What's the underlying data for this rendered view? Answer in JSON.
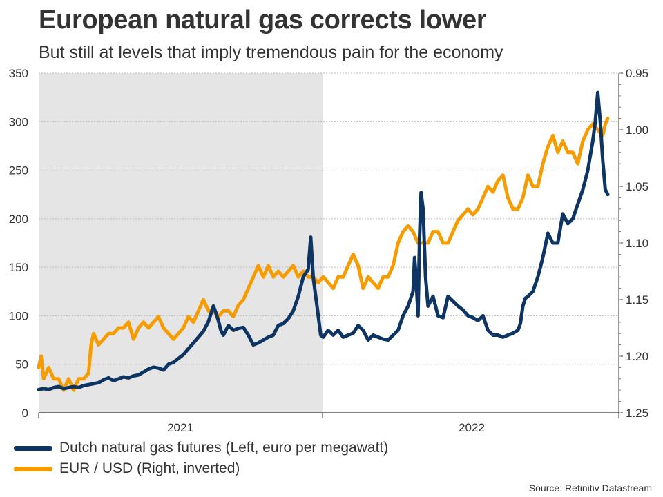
{
  "title": "European natural gas corrects lower",
  "subtitle": "But still at levels that imply tremendous pain for the economy",
  "source": "Source: Refinitiv Datastream",
  "chart_data": {
    "type": "line",
    "shaded_region": {
      "label": "2021",
      "color": "#e5e5e5"
    },
    "x_categories": [
      "2021",
      "2022"
    ],
    "left_axis": {
      "range": [
        0,
        350
      ],
      "ticks": [
        "0",
        "50",
        "100",
        "150",
        "200",
        "250",
        "300",
        "350"
      ]
    },
    "right_axis": {
      "range": [
        0.95,
        1.25
      ],
      "inverted": true,
      "ticks": [
        "0.95",
        "1.00",
        "1.05",
        "1.10",
        "1.15",
        "1.20",
        "1.25"
      ]
    },
    "t_range": [
      0,
      100
    ],
    "series": [
      {
        "name": "Dutch natural gas futures (Left, euro per megawatt)",
        "axis": "left",
        "color": "#0d3463",
        "points": [
          [
            0,
            24
          ],
          [
            1,
            25
          ],
          [
            2,
            24
          ],
          [
            3,
            26
          ],
          [
            4,
            27
          ],
          [
            5,
            25
          ],
          [
            6,
            26
          ],
          [
            7,
            27
          ],
          [
            8,
            26
          ],
          [
            9,
            28
          ],
          [
            10,
            29
          ],
          [
            11,
            30
          ],
          [
            12,
            31
          ],
          [
            13,
            34
          ],
          [
            14,
            36
          ],
          [
            15,
            33
          ],
          [
            16,
            35
          ],
          [
            17,
            37
          ],
          [
            18,
            36
          ],
          [
            19,
            38
          ],
          [
            20,
            39
          ],
          [
            21,
            42
          ],
          [
            22,
            45
          ],
          [
            23,
            47
          ],
          [
            24,
            46
          ],
          [
            25,
            44
          ],
          [
            26,
            50
          ],
          [
            27,
            52
          ],
          [
            28,
            56
          ],
          [
            29,
            60
          ],
          [
            30,
            66
          ],
          [
            31,
            72
          ],
          [
            32,
            78
          ],
          [
            33,
            84
          ],
          [
            34,
            94
          ],
          [
            35,
            110
          ],
          [
            35.5,
            103
          ],
          [
            36,
            95
          ],
          [
            36.5,
            85
          ],
          [
            37,
            80
          ],
          [
            38,
            90
          ],
          [
            39,
            85
          ],
          [
            40,
            87
          ],
          [
            41,
            88
          ],
          [
            42,
            80
          ],
          [
            43,
            70
          ],
          [
            44,
            72
          ],
          [
            45,
            75
          ],
          [
            46,
            78
          ],
          [
            47,
            80
          ],
          [
            48,
            90
          ],
          [
            49,
            92
          ],
          [
            50,
            97
          ],
          [
            51,
            105
          ],
          [
            52,
            120
          ],
          [
            53,
            140
          ],
          [
            54,
            148
          ],
          [
            54.5,
            181
          ],
          [
            55,
            140
          ],
          [
            56,
            100
          ],
          [
            56.5,
            80
          ],
          [
            57,
            78
          ],
          [
            58,
            85
          ],
          [
            59,
            80
          ],
          [
            60,
            85
          ],
          [
            61,
            78
          ],
          [
            62,
            80
          ],
          [
            63,
            82
          ],
          [
            64,
            90
          ],
          [
            65,
            85
          ],
          [
            66,
            75
          ],
          [
            67,
            80
          ],
          [
            68,
            78
          ],
          [
            69,
            76
          ],
          [
            70,
            75
          ],
          [
            71,
            80
          ],
          [
            72,
            85
          ],
          [
            73,
            100
          ],
          [
            74,
            110
          ],
          [
            75,
            125
          ],
          [
            75.3,
            160
          ],
          [
            75.6,
            140
          ],
          [
            76,
            100
          ],
          [
            76.3,
            180
          ],
          [
            76.6,
            227
          ],
          [
            77,
            210
          ],
          [
            77.5,
            140
          ],
          [
            78,
            110
          ],
          [
            79,
            120
          ],
          [
            80,
            100
          ],
          [
            81,
            98
          ],
          [
            82,
            120
          ],
          [
            83,
            115
          ],
          [
            84,
            110
          ],
          [
            85,
            106
          ],
          [
            86,
            100
          ],
          [
            87,
            98
          ],
          [
            88,
            95
          ],
          [
            89,
            100
          ],
          [
            90,
            85
          ],
          [
            91,
            80
          ],
          [
            92,
            80
          ],
          [
            93,
            78
          ],
          [
            94,
            80
          ],
          [
            95,
            82
          ],
          [
            96,
            85
          ],
          [
            96.5,
            92
          ],
          [
            97,
            110
          ],
          [
            97.5,
            118
          ],
          [
            98,
            120
          ],
          [
            99,
            125
          ],
          [
            100,
            140
          ],
          [
            101,
            160
          ],
          [
            102,
            185
          ],
          [
            103,
            175
          ],
          [
            104,
            175
          ],
          [
            105,
            205
          ],
          [
            106,
            195
          ],
          [
            107,
            200
          ],
          [
            108,
            215
          ],
          [
            109,
            230
          ],
          [
            110,
            250
          ],
          [
            111,
            280
          ],
          [
            111.5,
            300
          ],
          [
            112,
            330
          ],
          [
            112.5,
            300
          ],
          [
            113,
            260
          ],
          [
            113.5,
            230
          ],
          [
            114,
            225
          ]
        ]
      },
      {
        "name": "EUR / USD (Right, inverted)",
        "axis": "right",
        "color": "#f79c00",
        "points": [
          [
            0,
            1.21
          ],
          [
            0.5,
            1.2
          ],
          [
            1,
            1.22
          ],
          [
            2,
            1.21
          ],
          [
            3,
            1.22
          ],
          [
            4,
            1.22
          ],
          [
            5,
            1.23
          ],
          [
            6,
            1.22
          ],
          [
            7,
            1.23
          ],
          [
            8,
            1.22
          ],
          [
            9,
            1.22
          ],
          [
            10,
            1.215
          ],
          [
            10.5,
            1.19
          ],
          [
            11,
            1.18
          ],
          [
            12,
            1.19
          ],
          [
            13,
            1.185
          ],
          [
            14,
            1.18
          ],
          [
            15,
            1.18
          ],
          [
            16,
            1.175
          ],
          [
            17,
            1.175
          ],
          [
            18,
            1.17
          ],
          [
            19,
            1.185
          ],
          [
            20,
            1.175
          ],
          [
            21,
            1.17
          ],
          [
            22,
            1.175
          ],
          [
            23,
            1.17
          ],
          [
            24,
            1.165
          ],
          [
            25,
            1.175
          ],
          [
            26,
            1.18
          ],
          [
            27,
            1.185
          ],
          [
            28,
            1.18
          ],
          [
            29,
            1.175
          ],
          [
            30,
            1.165
          ],
          [
            31,
            1.17
          ],
          [
            32,
            1.16
          ],
          [
            33,
            1.15
          ],
          [
            34,
            1.16
          ],
          [
            35,
            1.16
          ],
          [
            36,
            1.165
          ],
          [
            37,
            1.16
          ],
          [
            38,
            1.16
          ],
          [
            39,
            1.165
          ],
          [
            40,
            1.155
          ],
          [
            41,
            1.15
          ],
          [
            42,
            1.14
          ],
          [
            43,
            1.13
          ],
          [
            44,
            1.12
          ],
          [
            45,
            1.13
          ],
          [
            46,
            1.12
          ],
          [
            47,
            1.13
          ],
          [
            48,
            1.125
          ],
          [
            49,
            1.13
          ],
          [
            50,
            1.125
          ],
          [
            51,
            1.12
          ],
          [
            52,
            1.13
          ],
          [
            53,
            1.125
          ],
          [
            54,
            1.13
          ],
          [
            55,
            1.13
          ],
          [
            56,
            1.135
          ],
          [
            57,
            1.13
          ],
          [
            58,
            1.135
          ],
          [
            59,
            1.14
          ],
          [
            60,
            1.13
          ],
          [
            61,
            1.13
          ],
          [
            62,
            1.12
          ],
          [
            63,
            1.11
          ],
          [
            64,
            1.12
          ],
          [
            65,
            1.14
          ],
          [
            66,
            1.13
          ],
          [
            67,
            1.135
          ],
          [
            68,
            1.14
          ],
          [
            69,
            1.13
          ],
          [
            70,
            1.13
          ],
          [
            71,
            1.12
          ],
          [
            72,
            1.1
          ],
          [
            73,
            1.09
          ],
          [
            74,
            1.085
          ],
          [
            75,
            1.09
          ],
          [
            76,
            1.1
          ],
          [
            77,
            1.1
          ],
          [
            78,
            1.1
          ],
          [
            79,
            1.09
          ],
          [
            80,
            1.09
          ],
          [
            81,
            1.1
          ],
          [
            82,
            1.1
          ],
          [
            83,
            1.09
          ],
          [
            84,
            1.08
          ],
          [
            85,
            1.075
          ],
          [
            86,
            1.07
          ],
          [
            87,
            1.075
          ],
          [
            88,
            1.07
          ],
          [
            89,
            1.06
          ],
          [
            90,
            1.05
          ],
          [
            91,
            1.055
          ],
          [
            92,
            1.045
          ],
          [
            93,
            1.04
          ],
          [
            94,
            1.06
          ],
          [
            95,
            1.07
          ],
          [
            96,
            1.07
          ],
          [
            97,
            1.06
          ],
          [
            98,
            1.04
          ],
          [
            99,
            1.05
          ],
          [
            100,
            1.05
          ],
          [
            101,
            1.03
          ],
          [
            102,
            1.015
          ],
          [
            103,
            1.005
          ],
          [
            104,
            1.02
          ],
          [
            105,
            1.01
          ],
          [
            106,
            1.02
          ],
          [
            107,
            1.02
          ],
          [
            108,
            1.03
          ],
          [
            109,
            1.01
          ],
          [
            110,
            1.0
          ],
          [
            111,
            0.995
          ],
          [
            112,
            1.0
          ],
          [
            113,
            1.005
          ],
          [
            113.5,
            0.995
          ],
          [
            114,
            0.99
          ]
        ]
      }
    ]
  }
}
